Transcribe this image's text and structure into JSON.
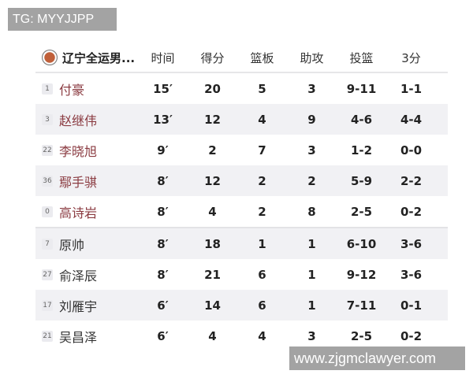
{
  "watermarks": {
    "top": "TG: MYYJJPP",
    "bottom": "www.zjgmclawyer.com"
  },
  "header": {
    "team": "辽宁全运男...",
    "cols": [
      "时间",
      "得分",
      "篮板",
      "助攻",
      "投篮",
      "3分"
    ]
  },
  "players": [
    {
      "num": "1",
      "name": "付豪",
      "starter": true,
      "stats": [
        "15′",
        "20",
        "5",
        "3",
        "9-11",
        "1-1"
      ]
    },
    {
      "num": "3",
      "name": "赵继伟",
      "starter": true,
      "stats": [
        "13′",
        "12",
        "4",
        "9",
        "4-6",
        "4-4"
      ]
    },
    {
      "num": "22",
      "name": "李晓旭",
      "starter": true,
      "stats": [
        "9′",
        "2",
        "7",
        "3",
        "1-2",
        "0-0"
      ]
    },
    {
      "num": "36",
      "name": "鄢手骐",
      "starter": true,
      "stats": [
        "8′",
        "12",
        "2",
        "2",
        "5-9",
        "2-2"
      ]
    },
    {
      "num": "0",
      "name": "高诗岩",
      "starter": true,
      "stats": [
        "8′",
        "4",
        "2",
        "8",
        "2-5",
        "0-2"
      ]
    },
    {
      "num": "7",
      "name": "原帅",
      "starter": false,
      "stats": [
        "8′",
        "18",
        "1",
        "1",
        "6-10",
        "3-6"
      ]
    },
    {
      "num": "27",
      "name": "俞泽辰",
      "starter": false,
      "stats": [
        "8′",
        "21",
        "6",
        "1",
        "9-12",
        "3-6"
      ]
    },
    {
      "num": "17",
      "name": "刘雁宇",
      "starter": false,
      "stats": [
        "6′",
        "14",
        "6",
        "1",
        "7-11",
        "0-1"
      ]
    },
    {
      "num": "21",
      "name": "吴昌泽",
      "starter": false,
      "stats": [
        "6′",
        "4",
        "4",
        "3",
        "2-5",
        "0-2"
      ]
    }
  ],
  "colors": {
    "starter_name": "#8a3a40",
    "bench_name": "#333333",
    "watermark_bg": "#a3a3a3"
  }
}
